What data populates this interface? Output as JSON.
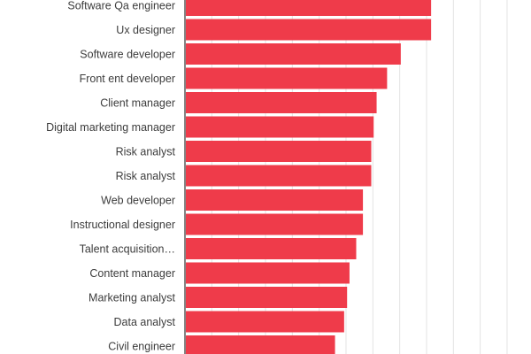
{
  "chart_data": {
    "type": "bar",
    "orientation": "horizontal",
    "title": "",
    "xlabel": "",
    "ylabel": "",
    "value_units": "gridline steps (no tick labels shown)",
    "xlim": [
      0,
      12
    ],
    "grid": true,
    "bar_color": "#ef3b4a",
    "categories": [
      "Software Qa engineer",
      "Ux designer",
      "Software developer",
      "Front ent developer",
      "Client manager",
      "Digital marketing manager",
      "Risk analyst",
      "Risk analyst",
      "Web developer",
      "Instructional designer",
      "Talent acquisition…",
      "Content manager",
      "Marketing analyst",
      "Data analyst",
      "Civil engineer"
    ],
    "values": [
      9.17,
      9.17,
      8.04,
      7.53,
      7.14,
      7.03,
      6.94,
      6.94,
      6.63,
      6.63,
      6.38,
      6.13,
      6.04,
      5.93,
      5.59
    ]
  }
}
